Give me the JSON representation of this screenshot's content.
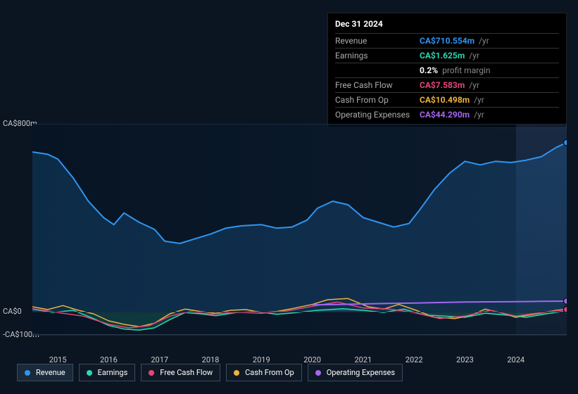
{
  "tooltip": {
    "date": "Dec 31 2024",
    "rows": [
      {
        "label": "Revenue",
        "value": "CA$710.554m",
        "unit": "/yr",
        "color": "#2f95f0"
      },
      {
        "label": "Earnings",
        "value": "CA$1.625m",
        "unit": "/yr",
        "color": "#2ad8b0",
        "extra_value": "0.2%",
        "extra_label": "profit margin"
      },
      {
        "label": "Free Cash Flow",
        "value": "CA$7.583m",
        "unit": "/yr",
        "color": "#e6467a"
      },
      {
        "label": "Cash From Op",
        "value": "CA$10.498m",
        "unit": "/yr",
        "color": "#f0b23c"
      },
      {
        "label": "Operating Expenses",
        "value": "CA$44.290m",
        "unit": "/yr",
        "color": "#a566f0"
      }
    ]
  },
  "chart": {
    "type": "line-area",
    "background_color": "#0b1522",
    "grid_color": "#1a2838",
    "axis_text_color": "#ccc",
    "y_labels": [
      {
        "text": "CA$800m",
        "y": 0
      },
      {
        "text": "CA$0",
        "y": 267
      },
      {
        "text": "-CA$100m",
        "y": 300
      }
    ],
    "x_labels": [
      "2015",
      "2016",
      "2017",
      "2018",
      "2019",
      "2020",
      "2021",
      "2022",
      "2023",
      "2024"
    ],
    "x_range": [
      2014.5,
      2025.0
    ],
    "y_range": [
      -100,
      800
    ],
    "highlight_from_x": 2024.0,
    "series": [
      {
        "name": "Revenue",
        "color": "#2f95f0",
        "fill": true,
        "stroke_width": 2,
        "legend_active": true,
        "points": [
          [
            2014.5,
            680
          ],
          [
            2014.8,
            670
          ],
          [
            2015.0,
            650
          ],
          [
            2015.3,
            570
          ],
          [
            2015.6,
            470
          ],
          [
            2015.9,
            400
          ],
          [
            2016.1,
            370
          ],
          [
            2016.3,
            420
          ],
          [
            2016.6,
            380
          ],
          [
            2016.9,
            350
          ],
          [
            2017.1,
            300
          ],
          [
            2017.4,
            290
          ],
          [
            2017.7,
            310
          ],
          [
            2018.0,
            330
          ],
          [
            2018.3,
            355
          ],
          [
            2018.6,
            365
          ],
          [
            2019.0,
            370
          ],
          [
            2019.3,
            355
          ],
          [
            2019.6,
            360
          ],
          [
            2019.9,
            390
          ],
          [
            2020.1,
            440
          ],
          [
            2020.4,
            470
          ],
          [
            2020.7,
            455
          ],
          [
            2021.0,
            400
          ],
          [
            2021.3,
            380
          ],
          [
            2021.6,
            360
          ],
          [
            2021.9,
            375
          ],
          [
            2022.1,
            430
          ],
          [
            2022.4,
            520
          ],
          [
            2022.7,
            590
          ],
          [
            2023.0,
            640
          ],
          [
            2023.3,
            625
          ],
          [
            2023.6,
            640
          ],
          [
            2023.9,
            635
          ],
          [
            2024.2,
            645
          ],
          [
            2024.5,
            660
          ],
          [
            2024.8,
            700
          ],
          [
            2025.0,
            720
          ]
        ]
      },
      {
        "name": "Cash From Op",
        "color": "#f0b23c",
        "fill": false,
        "stroke_width": 1.5,
        "points": [
          [
            2014.5,
            20
          ],
          [
            2014.8,
            8
          ],
          [
            2015.1,
            25
          ],
          [
            2015.4,
            5
          ],
          [
            2015.7,
            -10
          ],
          [
            2016.0,
            -40
          ],
          [
            2016.3,
            -55
          ],
          [
            2016.6,
            -65
          ],
          [
            2016.9,
            -50
          ],
          [
            2017.2,
            -10
          ],
          [
            2017.5,
            10
          ],
          [
            2017.8,
            0
          ],
          [
            2018.1,
            -8
          ],
          [
            2018.4,
            5
          ],
          [
            2018.7,
            8
          ],
          [
            2019.0,
            -5
          ],
          [
            2019.3,
            0
          ],
          [
            2019.6,
            12
          ],
          [
            2020.0,
            30
          ],
          [
            2020.3,
            50
          ],
          [
            2020.7,
            55
          ],
          [
            2021.1,
            20
          ],
          [
            2021.4,
            10
          ],
          [
            2021.7,
            30
          ],
          [
            2022.0,
            8
          ],
          [
            2022.4,
            -25
          ],
          [
            2022.8,
            -30
          ],
          [
            2023.1,
            -18
          ],
          [
            2023.4,
            10
          ],
          [
            2023.7,
            -5
          ],
          [
            2024.0,
            -25
          ],
          [
            2024.4,
            -10
          ],
          [
            2024.8,
            5
          ],
          [
            2025.0,
            10
          ]
        ]
      },
      {
        "name": "Earnings",
        "color": "#2ad8b0",
        "fill": true,
        "fill_opacity": 0.18,
        "stroke_width": 1.5,
        "points": [
          [
            2014.5,
            10
          ],
          [
            2014.9,
            -5
          ],
          [
            2015.3,
            5
          ],
          [
            2015.7,
            -30
          ],
          [
            2016.0,
            -60
          ],
          [
            2016.3,
            -75
          ],
          [
            2016.6,
            -80
          ],
          [
            2016.9,
            -70
          ],
          [
            2017.2,
            -35
          ],
          [
            2017.5,
            -5
          ],
          [
            2017.8,
            -10
          ],
          [
            2018.1,
            -18
          ],
          [
            2018.5,
            -5
          ],
          [
            2018.9,
            0
          ],
          [
            2019.3,
            -12
          ],
          [
            2019.7,
            -5
          ],
          [
            2020.1,
            5
          ],
          [
            2020.6,
            12
          ],
          [
            2021.0,
            5
          ],
          [
            2021.4,
            -5
          ],
          [
            2021.8,
            10
          ],
          [
            2022.2,
            -15
          ],
          [
            2022.6,
            -20
          ],
          [
            2023.0,
            -25
          ],
          [
            2023.4,
            -8
          ],
          [
            2023.8,
            -15
          ],
          [
            2024.2,
            -25
          ],
          [
            2024.6,
            -10
          ],
          [
            2025.0,
            2
          ]
        ]
      },
      {
        "name": "Free Cash Flow",
        "color": "#e6467a",
        "fill": false,
        "stroke_width": 1.5,
        "points": [
          [
            2014.5,
            12
          ],
          [
            2015.0,
            -5
          ],
          [
            2015.5,
            -20
          ],
          [
            2016.0,
            -55
          ],
          [
            2016.4,
            -70
          ],
          [
            2016.8,
            -60
          ],
          [
            2017.2,
            -20
          ],
          [
            2017.6,
            0
          ],
          [
            2018.0,
            -12
          ],
          [
            2018.5,
            -3
          ],
          [
            2019.0,
            -8
          ],
          [
            2019.5,
            2
          ],
          [
            2020.0,
            22
          ],
          [
            2020.5,
            40
          ],
          [
            2021.0,
            15
          ],
          [
            2021.5,
            10
          ],
          [
            2022.0,
            -5
          ],
          [
            2022.5,
            -30
          ],
          [
            2023.0,
            -20
          ],
          [
            2023.5,
            5
          ],
          [
            2024.0,
            -20
          ],
          [
            2024.5,
            -5
          ],
          [
            2025.0,
            8
          ]
        ]
      },
      {
        "name": "Operating Expenses",
        "color": "#a566f0",
        "fill": false,
        "stroke_width": 2,
        "points": [
          [
            2020.0,
            28
          ],
          [
            2020.5,
            30
          ],
          [
            2021.0,
            32
          ],
          [
            2021.5,
            34
          ],
          [
            2022.0,
            36
          ],
          [
            2022.5,
            38
          ],
          [
            2023.0,
            40
          ],
          [
            2023.5,
            41
          ],
          [
            2024.0,
            42
          ],
          [
            2024.5,
            43
          ],
          [
            2025.0,
            44
          ]
        ]
      }
    ],
    "legend": [
      {
        "label": "Revenue",
        "color": "#2f95f0",
        "active": true
      },
      {
        "label": "Earnings",
        "color": "#2ad8b0",
        "active": false
      },
      {
        "label": "Free Cash Flow",
        "color": "#e6467a",
        "active": false
      },
      {
        "label": "Cash From Op",
        "color": "#f0b23c",
        "active": false
      },
      {
        "label": "Operating Expenses",
        "color": "#a566f0",
        "active": false
      }
    ]
  }
}
